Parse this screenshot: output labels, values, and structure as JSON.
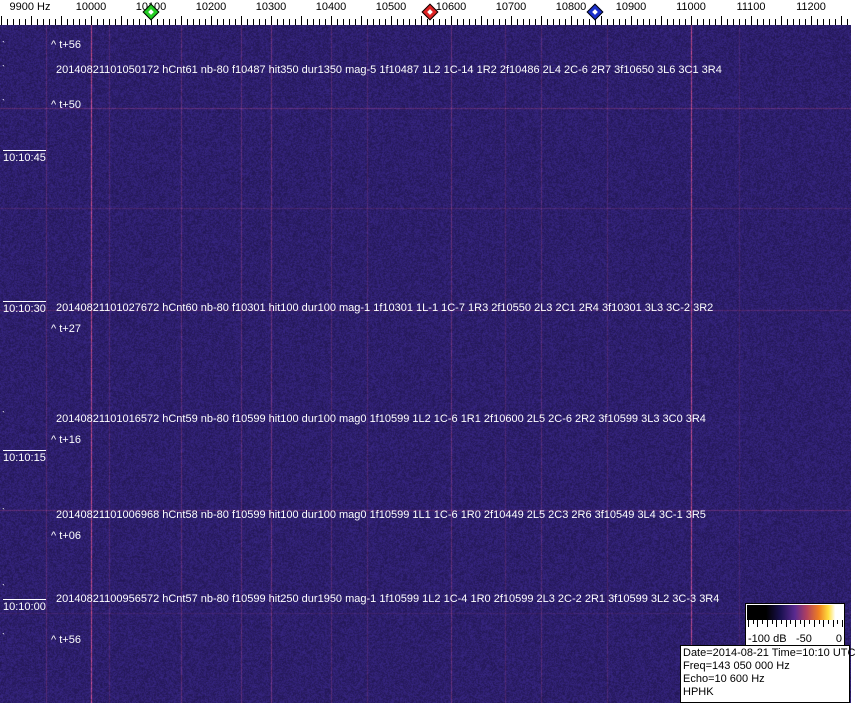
{
  "axis": {
    "unit_label": "9900 Hz",
    "ticks": [
      "10000",
      "10100",
      "10200",
      "10300",
      "10400",
      "10500",
      "10600",
      "10700",
      "10800",
      "10900",
      "11000",
      "11100",
      "11200"
    ]
  },
  "markers": [
    {
      "name": "green",
      "color": "#22cc22",
      "freq_hz": 10100
    },
    {
      "name": "red",
      "color": "#dd2222",
      "freq_hz": 10565
    },
    {
      "name": "blue",
      "color": "#1a2fcc",
      "freq_hz": 10840
    }
  ],
  "events": [
    {
      "text": "20140821101050172 hCnt61 nb-80 f10487 hit350 dur1350 mag-5 1f10487 1L2 1C-14 1R2 2f10486 2L4 2C-6 2R7 3f10650 3L6 3C1 3R4"
    },
    {
      "text": "20140821101027672 hCnt60 nb-80 f10301 hit100 dur100 mag-1 1f10301 1L-1 1C-7 1R3 2f10550 2L3 2C1 2R4 3f10301 3L3 3C-2 3R2"
    },
    {
      "text": "20140821101016572 hCnt59 nb-80 f10599 hit100 dur100 mag0 1f10599 1L2 1C-6 1R1 2f10600 2L5 2C-6 2R2 3f10599 3L3 3C0 3R4"
    },
    {
      "text": "20140821101006968 hCnt58 nb-80 f10599 hit100 dur100 mag0 1f10599 1L1 1C-6 1R0 2f10449 2L5 2C3 2R6 3f10549 3L4 3C-1 3R5"
    },
    {
      "text": "20140821100956572 hCnt57 nb-80 f10599 hit250 dur1950 mag-1 1f10599 1L2 1C-4 1R0 2f10599 2L3 2C-2 2R1 3f10599 3L2 3C-3 3R4"
    }
  ],
  "offsets": [
    "^ t+56",
    "^ t+50",
    "^ t+27",
    "^ t+16",
    "^ t+06",
    "^ t+56"
  ],
  "times": [
    "10:10:45",
    "10:10:30",
    "10:10:15",
    "10:10:00"
  ],
  "colorbar": {
    "labels": [
      "-100 dB",
      "-50",
      "0"
    ]
  },
  "info": {
    "date_time": "Date=2014-08-21 Time=10:10 UTC",
    "freq": "Freq=143 050 000 Hz",
    "echo": "Echo=10 600 Hz",
    "station": "HPHK"
  }
}
